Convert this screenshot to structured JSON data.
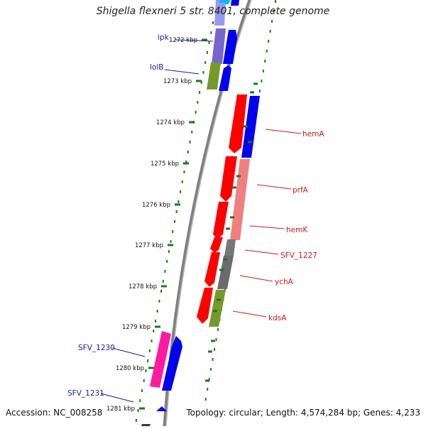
{
  "header": {
    "title": "Shigella flexneri 5 str. 8401, complete genome"
  },
  "footer": {
    "accession": "Accession: NC_008258",
    "summary": "Topology: circular; Length: 4,574,284 bp; Genes: 4,233"
  },
  "colors": {
    "forward": "#0000ff",
    "reverse": "#ff0000",
    "backbone": "#808080",
    "ticks": "#1a7a1a",
    "label_blue": "#1a1aa0",
    "label_red": "#cc1a1a"
  },
  "ruler": {
    "unit": "kbp",
    "ticks": [
      "1272 kbp",
      "1273 kbp",
      "1274 kbp",
      "1275 kbp",
      "1276 kbp",
      "1277 kbp",
      "1278 kbp",
      "1279 kbp",
      "1280 kbp",
      "1281 kbp"
    ]
  },
  "gene_labels": [
    {
      "name": "ipk",
      "strand": "left"
    },
    {
      "name": "lolB",
      "strand": "left"
    },
    {
      "name": "hemA",
      "strand": "right"
    },
    {
      "name": "prfA",
      "strand": "right"
    },
    {
      "name": "hemK",
      "strand": "right"
    },
    {
      "name": "SFV_1227",
      "strand": "right"
    },
    {
      "name": "ychA",
      "strand": "right"
    },
    {
      "name": "kdsA",
      "strand": "right"
    },
    {
      "name": "SFV_1230",
      "strand": "left"
    },
    {
      "name": "SFV_1231",
      "strand": "left"
    }
  ]
}
